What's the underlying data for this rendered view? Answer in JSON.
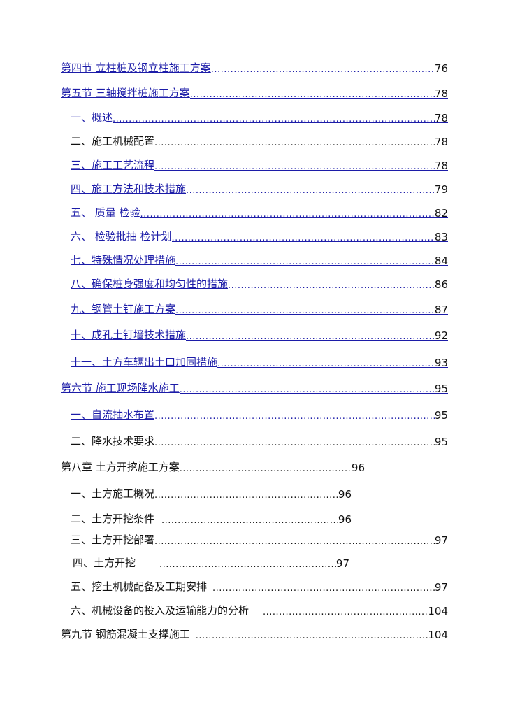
{
  "colors": {
    "link": "#1c1ca8",
    "text": "#111111"
  },
  "toc": [
    {
      "label": "第四节 立柱桩及钢立柱施工方案",
      "page": "76",
      "linked": true
    },
    {
      "label": "第五节 三轴搅拌桩施工方案",
      "page": "78",
      "linked": true
    },
    {
      "label": "一、概述",
      "page": "78",
      "linked": true
    },
    {
      "label": "二、施工机械配置",
      "page": "78",
      "linked": false
    },
    {
      "label": "三、施工工艺流程",
      "page": "78",
      "linked": true
    },
    {
      "label": "四、施工方法和技术措施",
      "page": "79",
      "linked": true
    },
    {
      "label": "五、 质量 检验",
      "page": "82",
      "linked": true
    },
    {
      "label": "六、 检验批抽 检计划",
      "page": "83",
      "linked": true
    },
    {
      "label": "七、特殊情况处理措施",
      "page": "84",
      "linked": true
    },
    {
      "label": "八、确保桩身强度和均匀性的措施",
      "page": "86",
      "linked": true
    },
    {
      "label": "九、钢管土钉施工方案",
      "page": "87",
      "linked": true
    },
    {
      "label": "十、成孔土钉墙技术措施",
      "page": "92",
      "linked": true
    },
    {
      "label": "十一、土方车辆出土口加固措施",
      "page": "93",
      "linked": true
    },
    {
      "label": "第六节 施工现场降水施工",
      "page": "95",
      "linked": true
    },
    {
      "label": "一、自流抽水布置",
      "page": "95",
      "linked": true
    },
    {
      "label": "二、降水技术要求",
      "page": "95",
      "linked": false
    },
    {
      "label": "第八章 土方开挖施工方案 ",
      "page": "96",
      "linked": false
    },
    {
      "label": "一、土方施工概况",
      "page": "96",
      "linked": false
    },
    {
      "label": "二、土方开挖条件 ",
      "page": "96",
      "linked": false
    },
    {
      "label": "三、土方开挖部署",
      "page": "97",
      "linked": false
    },
    {
      "label": "四、土方开挖  ",
      "page": "97",
      "linked": false
    },
    {
      "label": "五、挖土机械配备及工期安排 ",
      "page": "97",
      "linked": false
    },
    {
      "label": "六、机械设备的投入及运输能力的分析  ",
      "page": "104",
      "linked": false
    },
    {
      "label": "第九节 钢筋混凝土支撑施工 ",
      "page": "104",
      "linked": false
    }
  ]
}
